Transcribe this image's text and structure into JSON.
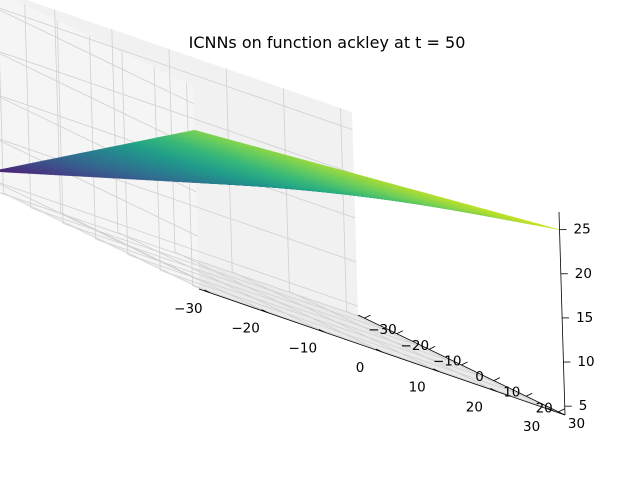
{
  "chart_data": {
    "type": "surface3d",
    "title": "ICNNs on function ackley at t = 50",
    "xlabel": "",
    "ylabel": "",
    "zlabel": "",
    "xlim": [
      -32,
      32
    ],
    "ylim": [
      -32,
      32
    ],
    "zlim": [
      4,
      27
    ],
    "x_ticks": [
      "−30",
      "−20",
      "−10",
      "0",
      "10",
      "20",
      "30"
    ],
    "y_ticks": [
      "−30",
      "−20",
      "−10",
      "0",
      "10",
      "20",
      "30"
    ],
    "z_ticks": [
      "5",
      "10",
      "15",
      "20",
      "25"
    ],
    "colormap": "viridis",
    "grid": true,
    "surface": {
      "corners": [
        {
          "x": -32,
          "y": -32,
          "z": 6
        },
        {
          "x": 32,
          "y": -32,
          "z": 18
        },
        {
          "x": 32,
          "y": 32,
          "z": 25
        },
        {
          "x": -32,
          "y": 32,
          "z": 22
        }
      ],
      "z_min": 4.5,
      "z_max": 26.5
    }
  }
}
